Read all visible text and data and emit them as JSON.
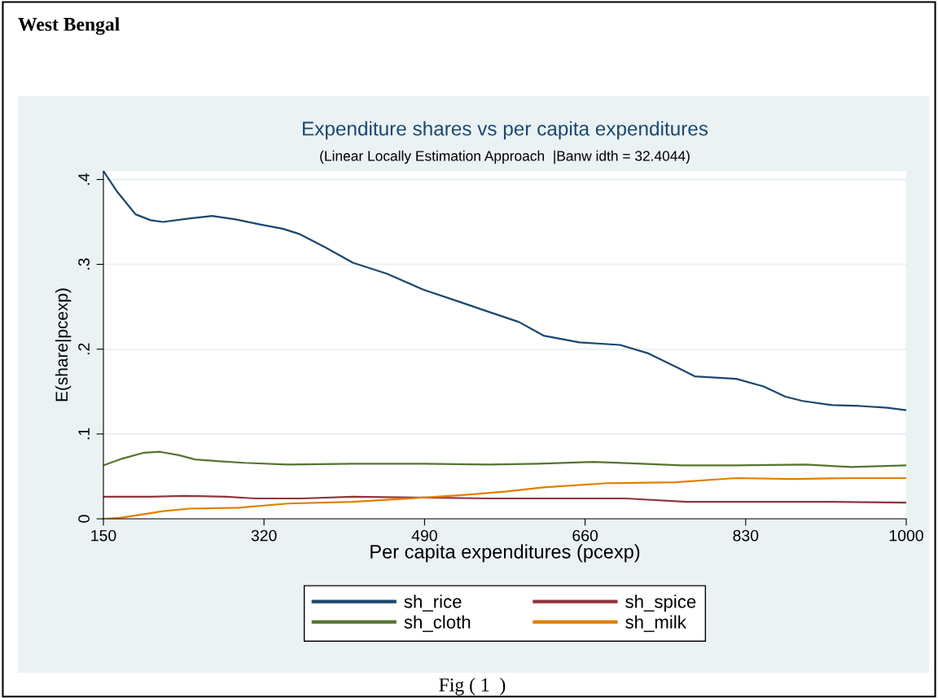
{
  "chart_data": {
    "type": "line",
    "title": "Expenditure shares vs per capita expenditures",
    "subtitle": "(Linear Locally Estimation Approach  |Banw idth = 32.4044)",
    "xlabel": "Per capita expenditures (pcexp)",
    "ylabel": "E(share|pcexp)",
    "annotations": [
      "West Bengal",
      "Fig ( 1  )"
    ],
    "xlim": [
      150,
      1000
    ],
    "xticks": [
      150,
      320,
      490,
      660,
      830,
      1000
    ],
    "ylim": [
      0,
      0.41
    ],
    "yticks": [
      {
        "value": 0,
        "label": "0"
      },
      {
        "value": 0.1,
        "label": ".1"
      },
      {
        "value": 0.2,
        "label": ".2"
      },
      {
        "value": 0.3,
        "label": ".3"
      },
      {
        "value": 0.4,
        "label": ".4"
      }
    ],
    "grid": "y",
    "legend": "bottom",
    "line_style": "solid",
    "marker": "none",
    "series": [
      {
        "name": "sh_rice",
        "color": "#1a476f",
        "x": [
          150,
          165,
          184,
          200,
          213,
          240,
          265,
          290,
          316,
          340,
          357,
          385,
          414,
          450,
          489,
          529,
          558,
          590,
          616,
          654,
          697,
          727,
          762,
          776,
          820,
          849,
          872,
          890,
          922,
          951,
          980,
          1000
        ],
        "values": [
          0.41,
          0.385,
          0.359,
          0.352,
          0.35,
          0.354,
          0.357,
          0.353,
          0.347,
          0.342,
          0.336,
          0.32,
          0.302,
          0.289,
          0.27,
          0.255,
          0.244,
          0.232,
          0.216,
          0.208,
          0.205,
          0.195,
          0.176,
          0.168,
          0.165,
          0.156,
          0.144,
          0.139,
          0.134,
          0.133,
          0.131,
          0.128
        ]
      },
      {
        "name": "sh_cloth",
        "color": "#55752f",
        "x": [
          150,
          170,
          193,
          210,
          230,
          247,
          270,
          299,
          345,
          414,
          489,
          558,
          610,
          668,
          720,
          762,
          820,
          893,
          942,
          1000
        ],
        "values": [
          0.063,
          0.071,
          0.078,
          0.079,
          0.075,
          0.07,
          0.068,
          0.066,
          0.064,
          0.065,
          0.065,
          0.064,
          0.065,
          0.067,
          0.065,
          0.063,
          0.063,
          0.064,
          0.061,
          0.063
        ]
      },
      {
        "name": "sh_spice",
        "color": "#90353b",
        "x": [
          150,
          200,
          236,
          280,
          311,
          360,
          414,
          489,
          558,
          650,
          703,
          767,
          850,
          920,
          1000
        ],
        "values": [
          0.026,
          0.026,
          0.027,
          0.026,
          0.024,
          0.024,
          0.026,
          0.025,
          0.024,
          0.024,
          0.024,
          0.02,
          0.02,
          0.02,
          0.019
        ]
      },
      {
        "name": "sh_milk",
        "color": "#e37e00",
        "x": [
          150,
          167,
          190,
          213,
          241,
          293,
          345,
          414,
          489,
          530,
          575,
          616,
          683,
          755,
          820,
          880,
          946,
          1000
        ],
        "values": [
          0.0,
          0.001,
          0.005,
          0.009,
          0.012,
          0.013,
          0.018,
          0.02,
          0.025,
          0.028,
          0.032,
          0.037,
          0.042,
          0.043,
          0.048,
          0.047,
          0.048,
          0.048
        ]
      }
    ]
  }
}
